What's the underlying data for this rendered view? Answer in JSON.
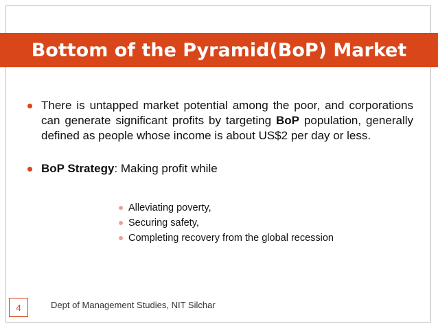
{
  "slide": {
    "title": "Bottom of the Pyramid(BoP) Market",
    "bullet1": {
      "text_before": "There is untapped market potential among the poor, and corporations can generate significant profits by targeting ",
      "bold": "BoP",
      "text_after": " population, generally defined as people whose income is about US$2 per day or less."
    },
    "bullet2": {
      "bold": "BoP Strategy",
      "text": ": Making profit while"
    },
    "sub_items": [
      "Alleviating poverty,",
      "Securing safety,",
      "Completing recovery from the global recession"
    ],
    "footer": {
      "page_number": "4",
      "text": "Dept of Management Studies, NIT Silchar"
    }
  },
  "colors": {
    "accent": "#d9461a",
    "sub_bullet": "#e8a48f"
  }
}
